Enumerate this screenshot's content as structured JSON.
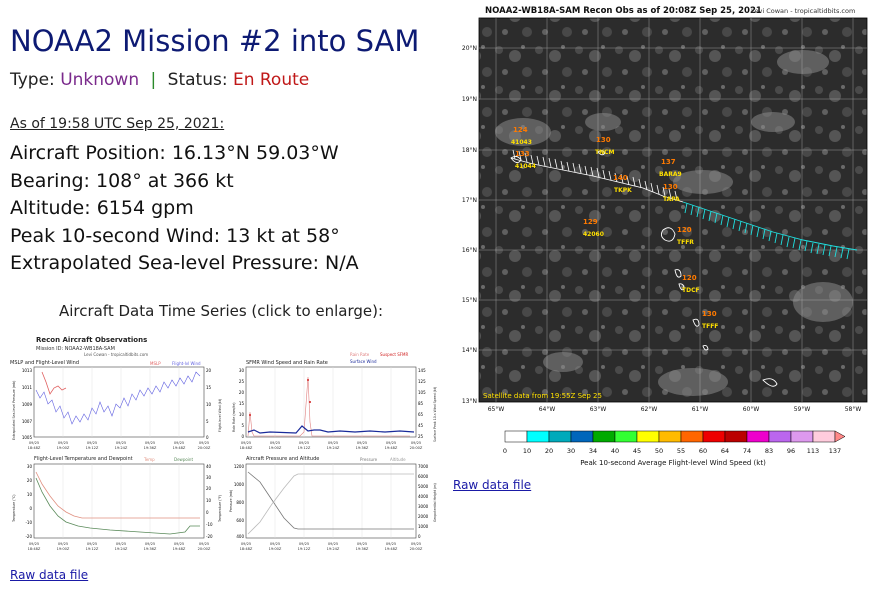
{
  "left": {
    "title": "NOAA2 Mission #2 into SAM",
    "type_label": "Type:",
    "type_value": "Unknown",
    "separator": "|",
    "status_label": "Status:",
    "status_value": "En Route",
    "as_of": "As of 19:58 UTC Sep 25, 2021:",
    "stats": [
      "Aircraft Position: 16.13°N 59.03°W",
      "Bearing: 108° at 366 kt",
      "Altitude: 6154 gpm",
      "Peak 10-second Wind: 13 kt at 58°",
      "Extrapolated Sea-level Pressure: N/A"
    ],
    "timeseries_caption": "Aircraft Data Time Series (click to enlarge):",
    "raw_link": "Raw data file"
  },
  "timeseries": {
    "title": "Recon Aircraft Observations",
    "subtitle": "Mission ID: NOAA2-WB18A-SAM",
    "credit": "Levi Cowan - tropicaltidbits.com",
    "panels": {
      "p1": {
        "title": "MSLP and Flight-Level Wind",
        "legend": [
          "MSLP",
          "Flight-lvl Wind"
        ],
        "yl": [
          "1013",
          "1011",
          "1009",
          "1007",
          "1005"
        ],
        "yr": [
          "20",
          "15",
          "10",
          "5",
          "0"
        ],
        "ylabel": "Extrapolated Sea-level Pressure (mb)",
        "ylabel2": "Flight-level Wind (kt)"
      },
      "p2": {
        "title": "SFMR Wind Speed and Rain Rate",
        "legend": [
          "Rain Rate",
          "Suspect SFMR",
          "Surface Wind"
        ],
        "yl": [
          "30",
          "25",
          "20",
          "15",
          "10",
          "5",
          "0"
        ],
        "yr": [
          "145",
          "125",
          "105",
          "85",
          "65",
          "45",
          "25"
        ],
        "ylabel": "Rain Rate (mm/hr)",
        "ylabel2": "Surface Peak 10-s Wind Speed (kt)"
      },
      "p3": {
        "title": "Flight-Level Temperature and Dewpoint",
        "legend": [
          "Temp",
          "Dewpoint"
        ],
        "yl": [
          "30",
          "20",
          "10",
          "0",
          "-10",
          "-20"
        ],
        "yr": [
          "40",
          "30",
          "20",
          "10",
          "0",
          "-10",
          "-20"
        ],
        "ylabel": "Temperature (°C)",
        "ylabel2": "Temperature (°F)"
      },
      "p4": {
        "title": "Aircraft Pressure and Altitude",
        "legend": [
          "Pressure",
          "Altitude"
        ],
        "yl": [
          "1200",
          "1000",
          "800",
          "600",
          "400"
        ],
        "yr": [
          "7000",
          "6000",
          "5000",
          "4000",
          "3000",
          "2000",
          "1000",
          "0"
        ],
        "ylabel": "Pressure (mb)",
        "ylabel2": "Geopotential Height (m)"
      }
    },
    "xticks": [
      "09/25\n18:48Z",
      "09/25\n19:00Z",
      "09/25\n19:12Z",
      "09/25\n19:24Z",
      "09/25\n19:36Z",
      "09/25\n19:48Z",
      "09/25\n20:00Z"
    ]
  },
  "map": {
    "title": "NOAA2-WB18A-SAM Recon Obs as of 20:08Z Sep 25, 2021",
    "credit": "Levi Cowan - tropicaltidbits.com",
    "lat_labels": [
      "20°N",
      "19°N",
      "18°N",
      "17°N",
      "16°N",
      "15°N",
      "14°N",
      "13°N"
    ],
    "lon_labels": [
      "65°W",
      "64°W",
      "63°W",
      "62°W",
      "61°W",
      "60°W",
      "59°W",
      "58°W"
    ],
    "satellite_note": "Satellite data from 19:55Z Sep 25",
    "stations": [
      {
        "num": "124",
        "id": "41043"
      },
      {
        "num": "133",
        "id": "41044"
      },
      {
        "num": "130",
        "id": "TNCM"
      },
      {
        "num": "137",
        "id": "BARA9"
      },
      {
        "num": "140",
        "id": "TKPK"
      },
      {
        "num": "130",
        "id": "TAPA"
      },
      {
        "num": "129",
        "id": "42060"
      },
      {
        "num": "120",
        "id": "TFFR"
      },
      {
        "num": "120",
        "id": "TDCF"
      },
      {
        "num": "130",
        "id": "TFFF"
      }
    ],
    "colorbar_ticks": [
      "0",
      "10",
      "20",
      "30",
      "34",
      "40",
      "45",
      "50",
      "55",
      "60",
      "64",
      "74",
      "83",
      "96",
      "113",
      "137"
    ],
    "colorbar_label": "Peak 10-second Average Flight-level Wind Speed (kt)",
    "colorbar_colors": [
      "#ffffff",
      "#00ffff",
      "#00aabb",
      "#0066bb",
      "#00aa00",
      "#33ff33",
      "#ffff00",
      "#ffbb00",
      "#ff6600",
      "#ee0000",
      "#bb0000",
      "#ee00cc",
      "#bb66ee",
      "#dd99ee",
      "#ffccdd"
    ],
    "track_color": "#20e0e0",
    "label_color": "#ff7a00",
    "id_color": "#ffe000",
    "raw_link": "Raw data file"
  }
}
